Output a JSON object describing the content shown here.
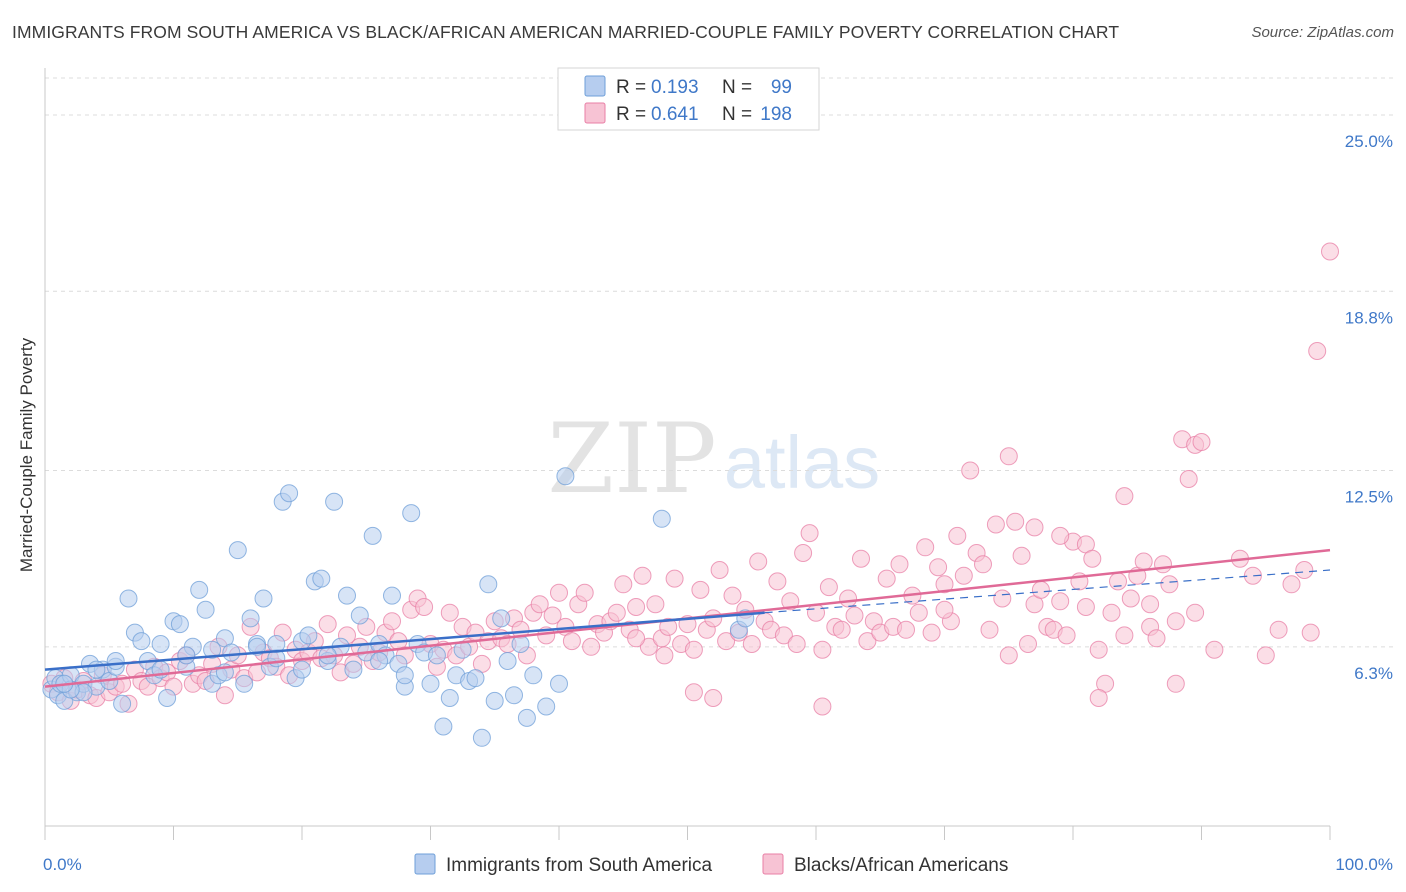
{
  "title": "IMMIGRANTS FROM SOUTH AMERICA VS BLACK/AFRICAN AMERICAN MARRIED-COUPLE FAMILY POVERTY CORRELATION CHART",
  "source": "Source: ZipAtlas.com",
  "watermark": {
    "zip": "ZIP",
    "atlas": "atlas"
  },
  "legend_top": {
    "r_label": "R =",
    "n_label": "N =",
    "rows": [
      {
        "r": "0.193",
        "n": "99"
      },
      {
        "r": "0.641",
        "n": "198"
      }
    ]
  },
  "chart_data": {
    "type": "scatter",
    "title": "IMMIGRANTS FROM SOUTH AMERICA VS BLACK/AFRICAN AMERICAN MARRIED-COUPLE FAMILY POVERTY CORRELATION CHART",
    "xlabel": "",
    "ylabel": "Married-Couple Family Poverty",
    "xlim": [
      0,
      100
    ],
    "ylim": [
      0,
      26.3
    ],
    "x_tick_labels": [
      "0.0%",
      "100.0%"
    ],
    "y_ticks": [
      6.3,
      12.5,
      18.8,
      25.0
    ],
    "y_tick_labels": [
      "6.3%",
      "12.5%",
      "18.8%",
      "25.0%"
    ],
    "grid": true,
    "legend_position": "bottom-center",
    "colors": {
      "blue": "#6f9fd8",
      "blue_fill": "#b6cdef",
      "blue_line": "#3a6fc8",
      "pink": "#e87fa6",
      "pink_fill": "#f7c3d4",
      "pink_line": "#e06a97",
      "tick_label": "#3f78c8"
    },
    "series": [
      {
        "name": "Immigrants from South America",
        "r": 0.193,
        "n": 99,
        "trend": {
          "x": [
            0,
            56
          ],
          "y": [
            5.5,
            7.5
          ],
          "dashed_to": {
            "x": 100,
            "y": 9.0
          }
        },
        "points": [
          [
            0.5,
            4.8
          ],
          [
            0.8,
            5.2
          ],
          [
            1.0,
            4.6
          ],
          [
            1.2,
            5.0
          ],
          [
            1.5,
            4.4
          ],
          [
            2.0,
            5.3
          ],
          [
            2.5,
            4.7
          ],
          [
            3.0,
            5.0
          ],
          [
            3.5,
            5.7
          ],
          [
            4.0,
            4.9
          ],
          [
            4.5,
            5.5
          ],
          [
            5.0,
            5.1
          ],
          [
            5.5,
            5.6
          ],
          [
            6.0,
            4.3
          ],
          [
            6.5,
            8.0
          ],
          [
            7.0,
            6.8
          ],
          [
            7.5,
            6.5
          ],
          [
            8.0,
            5.8
          ],
          [
            8.5,
            5.3
          ],
          [
            9.0,
            6.4
          ],
          [
            9.5,
            4.5
          ],
          [
            10.0,
            7.2
          ],
          [
            10.5,
            7.1
          ],
          [
            11.0,
            5.6
          ],
          [
            11.5,
            6.3
          ],
          [
            12.0,
            8.3
          ],
          [
            12.5,
            7.6
          ],
          [
            13.0,
            5.0
          ],
          [
            13.5,
            5.3
          ],
          [
            14.0,
            6.6
          ],
          [
            14.5,
            6.1
          ],
          [
            15.0,
            9.7
          ],
          [
            15.5,
            5.0
          ],
          [
            16.0,
            7.3
          ],
          [
            16.5,
            6.4
          ],
          [
            17.0,
            8.0
          ],
          [
            17.5,
            5.6
          ],
          [
            18.0,
            5.9
          ],
          [
            18.5,
            11.4
          ],
          [
            19.0,
            11.7
          ],
          [
            19.5,
            5.2
          ],
          [
            20.0,
            6.5
          ],
          [
            20.5,
            6.7
          ],
          [
            21.0,
            8.6
          ],
          [
            21.5,
            8.7
          ],
          [
            22.0,
            5.8
          ],
          [
            22.5,
            11.4
          ],
          [
            23.0,
            6.3
          ],
          [
            23.5,
            8.1
          ],
          [
            24.0,
            5.5
          ],
          [
            24.5,
            7.4
          ],
          [
            25.0,
            6.1
          ],
          [
            25.5,
            10.2
          ],
          [
            26.0,
            6.4
          ],
          [
            26.5,
            6.0
          ],
          [
            27.0,
            8.1
          ],
          [
            27.5,
            5.7
          ],
          [
            28.0,
            4.9
          ],
          [
            28.5,
            11.0
          ],
          [
            29.0,
            6.4
          ],
          [
            29.5,
            6.1
          ],
          [
            30.0,
            5.0
          ],
          [
            30.5,
            6.0
          ],
          [
            31.0,
            3.5
          ],
          [
            31.5,
            4.5
          ],
          [
            32.0,
            5.3
          ],
          [
            32.5,
            6.2
          ],
          [
            33.0,
            5.1
          ],
          [
            33.5,
            5.2
          ],
          [
            34.0,
            3.1
          ],
          [
            34.5,
            8.5
          ],
          [
            35.0,
            4.4
          ],
          [
            35.5,
            7.3
          ],
          [
            36.0,
            5.8
          ],
          [
            36.5,
            4.6
          ],
          [
            37.0,
            6.4
          ],
          [
            37.5,
            3.8
          ],
          [
            38.0,
            5.3
          ],
          [
            39.0,
            4.2
          ],
          [
            40.0,
            5.0
          ],
          [
            3.0,
            4.7
          ],
          [
            4.0,
            5.5
          ],
          [
            5.5,
            5.8
          ],
          [
            2.0,
            4.8
          ],
          [
            1.5,
            5.0
          ],
          [
            9.0,
            5.5
          ],
          [
            11.0,
            6.0
          ],
          [
            13.0,
            6.2
          ],
          [
            14.0,
            5.4
          ],
          [
            16.5,
            6.3
          ],
          [
            18.0,
            6.4
          ],
          [
            20.0,
            5.5
          ],
          [
            22.0,
            6.0
          ],
          [
            26.0,
            5.8
          ],
          [
            28.0,
            5.3
          ],
          [
            40.5,
            12.3
          ],
          [
            48.0,
            10.8
          ],
          [
            54.0,
            6.9
          ],
          [
            54.5,
            7.3
          ]
        ]
      },
      {
        "name": "Blacks/African Americans",
        "r": 0.641,
        "n": 198,
        "trend": {
          "x": [
            0,
            100
          ],
          "y": [
            4.9,
            9.7
          ]
        },
        "points": [
          [
            0.5,
            5.0
          ],
          [
            1.0,
            4.7
          ],
          [
            1.5,
            5.2
          ],
          [
            2.0,
            4.4
          ],
          [
            2.5,
            4.8
          ],
          [
            3.0,
            5.1
          ],
          [
            3.5,
            4.6
          ],
          [
            4.0,
            4.5
          ],
          [
            4.5,
            5.3
          ],
          [
            5.0,
            4.7
          ],
          [
            5.5,
            4.9
          ],
          [
            6.0,
            5.0
          ],
          [
            6.5,
            4.3
          ],
          [
            7.0,
            5.5
          ],
          [
            7.5,
            5.1
          ],
          [
            8.0,
            4.9
          ],
          [
            8.5,
            5.6
          ],
          [
            9.0,
            5.2
          ],
          [
            9.5,
            5.4
          ],
          [
            10.0,
            4.9
          ],
          [
            10.5,
            5.8
          ],
          [
            11.0,
            6.0
          ],
          [
            11.5,
            5.0
          ],
          [
            12.0,
            5.3
          ],
          [
            12.5,
            5.1
          ],
          [
            13.0,
            5.7
          ],
          [
            13.5,
            6.3
          ],
          [
            14.0,
            4.6
          ],
          [
            14.5,
            5.5
          ],
          [
            15.0,
            6.0
          ],
          [
            15.5,
            5.2
          ],
          [
            16.0,
            7.0
          ],
          [
            16.5,
            5.4
          ],
          [
            17.0,
            6.1
          ],
          [
            17.5,
            5.9
          ],
          [
            18.0,
            5.6
          ],
          [
            18.5,
            6.8
          ],
          [
            19.0,
            5.3
          ],
          [
            19.5,
            6.2
          ],
          [
            20.0,
            5.8
          ],
          [
            20.5,
            6.1
          ],
          [
            21.0,
            6.5
          ],
          [
            21.5,
            5.9
          ],
          [
            22.0,
            7.1
          ],
          [
            22.5,
            6.0
          ],
          [
            23.0,
            5.4
          ],
          [
            23.5,
            6.7
          ],
          [
            24.0,
            5.7
          ],
          [
            24.5,
            6.3
          ],
          [
            25.0,
            7.0
          ],
          [
            25.5,
            5.8
          ],
          [
            26.0,
            6.1
          ],
          [
            26.5,
            6.8
          ],
          [
            27.0,
            7.2
          ],
          [
            27.5,
            6.5
          ],
          [
            28.0,
            6.0
          ],
          [
            28.5,
            7.6
          ],
          [
            29.0,
            8.0
          ],
          [
            29.5,
            7.7
          ],
          [
            30.0,
            6.4
          ],
          [
            30.5,
            5.6
          ],
          [
            31.0,
            6.2
          ],
          [
            31.5,
            7.5
          ],
          [
            32.0,
            6.0
          ],
          [
            32.5,
            7.0
          ],
          [
            33.0,
            6.3
          ],
          [
            33.5,
            6.8
          ],
          [
            34.0,
            5.7
          ],
          [
            34.5,
            6.5
          ],
          [
            35.0,
            7.2
          ],
          [
            35.5,
            6.6
          ],
          [
            36.0,
            6.4
          ],
          [
            36.5,
            7.3
          ],
          [
            37.0,
            6.9
          ],
          [
            37.5,
            6.0
          ],
          [
            38.0,
            7.5
          ],
          [
            38.5,
            7.8
          ],
          [
            39.0,
            6.7
          ],
          [
            39.5,
            7.4
          ],
          [
            40.0,
            8.2
          ],
          [
            40.5,
            7.0
          ],
          [
            41.0,
            6.5
          ],
          [
            41.5,
            7.8
          ],
          [
            42.0,
            8.2
          ],
          [
            42.5,
            6.3
          ],
          [
            43.0,
            7.1
          ],
          [
            43.5,
            6.8
          ],
          [
            44.0,
            7.2
          ],
          [
            44.5,
            7.5
          ],
          [
            45.0,
            8.5
          ],
          [
            45.5,
            6.9
          ],
          [
            46.0,
            7.7
          ],
          [
            46.5,
            8.8
          ],
          [
            47.0,
            6.3
          ],
          [
            47.5,
            7.8
          ],
          [
            48.0,
            6.6
          ],
          [
            48.5,
            7.0
          ],
          [
            49.0,
            8.7
          ],
          [
            49.5,
            6.4
          ],
          [
            50.0,
            7.1
          ],
          [
            50.5,
            6.2
          ],
          [
            51.0,
            8.3
          ],
          [
            51.5,
            6.9
          ],
          [
            52.0,
            7.3
          ],
          [
            52.5,
            9.0
          ],
          [
            53.0,
            6.5
          ],
          [
            53.5,
            8.1
          ],
          [
            54.0,
            6.8
          ],
          [
            54.5,
            7.6
          ],
          [
            55.0,
            6.4
          ],
          [
            55.5,
            9.3
          ],
          [
            56.0,
            7.2
          ],
          [
            56.5,
            6.9
          ],
          [
            57.0,
            8.6
          ],
          [
            57.5,
            6.7
          ],
          [
            58.0,
            7.9
          ],
          [
            58.5,
            6.4
          ],
          [
            59.0,
            9.6
          ],
          [
            59.5,
            10.3
          ],
          [
            60.0,
            7.5
          ],
          [
            60.5,
            6.2
          ],
          [
            61.0,
            8.4
          ],
          [
            61.5,
            7.0
          ],
          [
            62.0,
            6.9
          ],
          [
            62.5,
            8.0
          ],
          [
            63.0,
            7.4
          ],
          [
            63.5,
            9.4
          ],
          [
            64.0,
            6.5
          ],
          [
            64.5,
            7.2
          ],
          [
            65.0,
            6.8
          ],
          [
            65.5,
            8.7
          ],
          [
            66.0,
            7.0
          ],
          [
            66.5,
            9.2
          ],
          [
            67.0,
            6.9
          ],
          [
            67.5,
            8.1
          ],
          [
            68.0,
            7.5
          ],
          [
            68.5,
            9.8
          ],
          [
            69.0,
            6.8
          ],
          [
            69.5,
            9.1
          ],
          [
            70.0,
            8.5
          ],
          [
            70.5,
            7.2
          ],
          [
            71.0,
            10.2
          ],
          [
            71.5,
            8.8
          ],
          [
            72.0,
            12.5
          ],
          [
            72.5,
            9.6
          ],
          [
            73.0,
            9.2
          ],
          [
            73.5,
            6.9
          ],
          [
            74.0,
            10.6
          ],
          [
            74.5,
            8.0
          ],
          [
            75.0,
            13.0
          ],
          [
            75.5,
            10.7
          ],
          [
            76.0,
            9.5
          ],
          [
            76.5,
            6.4
          ],
          [
            77.0,
            7.8
          ],
          [
            77.5,
            8.3
          ],
          [
            78.0,
            7.0
          ],
          [
            78.5,
            6.9
          ],
          [
            79.0,
            7.9
          ],
          [
            79.5,
            6.7
          ],
          [
            80.0,
            10.0
          ],
          [
            80.5,
            8.6
          ],
          [
            81.0,
            9.9
          ],
          [
            81.5,
            9.4
          ],
          [
            82.0,
            6.2
          ],
          [
            82.5,
            5.0
          ],
          [
            83.0,
            7.5
          ],
          [
            83.5,
            8.6
          ],
          [
            84.0,
            11.6
          ],
          [
            84.5,
            8.0
          ],
          [
            85.0,
            8.8
          ],
          [
            85.5,
            9.3
          ],
          [
            86.0,
            7.0
          ],
          [
            86.5,
            6.6
          ],
          [
            87.0,
            9.2
          ],
          [
            87.5,
            8.5
          ],
          [
            88.0,
            7.2
          ],
          [
            88.5,
            13.6
          ],
          [
            89.0,
            12.2
          ],
          [
            89.5,
            13.4
          ],
          [
            90.0,
            13.5
          ],
          [
            95.0,
            6.0
          ],
          [
            98.0,
            9.0
          ],
          [
            99.0,
            16.7
          ],
          [
            100.0,
            20.2
          ],
          [
            46.0,
            6.6
          ],
          [
            48.2,
            6.0
          ],
          [
            50.5,
            4.7
          ],
          [
            52.0,
            4.5
          ],
          [
            60.5,
            4.2
          ],
          [
            70.0,
            7.6
          ],
          [
            75.0,
            6.0
          ],
          [
            77.0,
            10.5
          ],
          [
            79.0,
            10.2
          ],
          [
            81.0,
            7.7
          ],
          [
            82.0,
            4.5
          ],
          [
            84.0,
            6.7
          ],
          [
            86.0,
            7.8
          ],
          [
            88.0,
            5.0
          ],
          [
            89.5,
            7.5
          ],
          [
            91.0,
            6.2
          ],
          [
            93.0,
            9.4
          ],
          [
            94.0,
            8.8
          ],
          [
            96.0,
            6.9
          ],
          [
            97.0,
            8.5
          ],
          [
            98.5,
            6.8
          ]
        ]
      }
    ]
  }
}
